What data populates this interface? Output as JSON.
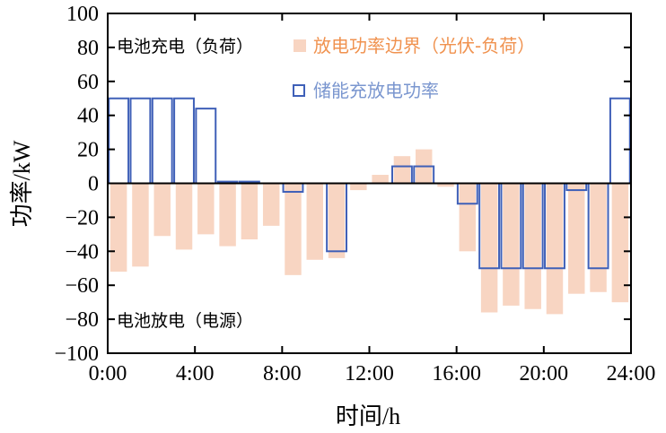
{
  "chart_data": {
    "type": "bar",
    "xlabel": "时间/h",
    "ylabel": "功率/kW",
    "xlim": [
      0,
      24
    ],
    "ylim": [
      -100,
      100
    ],
    "x_ticks": [
      "0:00",
      "4:00",
      "8:00",
      "12:00",
      "16:00",
      "20:00",
      "24:00"
    ],
    "y_ticks": [
      "100",
      "80",
      "60",
      "40",
      "20",
      "0",
      "−20",
      "−40",
      "−60",
      "−80",
      "−100"
    ],
    "hours": [
      0,
      1,
      2,
      3,
      4,
      5,
      6,
      7,
      8,
      9,
      10,
      11,
      12,
      13,
      14,
      15,
      16,
      17,
      18,
      19,
      20,
      21,
      22,
      23
    ],
    "series": [
      {
        "name": "放电功率边界（光伏-负荷）",
        "color": "#f8d5c2",
        "values": [
          -52,
          -49,
          -31,
          -39,
          -30,
          -37,
          -33,
          -25,
          -54,
          -45,
          -44,
          -4,
          5,
          16,
          20,
          -2,
          -40,
          -76,
          -72,
          -74,
          -77,
          -65,
          -64,
          -70
        ]
      },
      {
        "name": "储能充放电功率",
        "color": "#3f60b8",
        "values": [
          50,
          50,
          50,
          50,
          44,
          1,
          1,
          0,
          -5,
          0,
          -40,
          0,
          0,
          10,
          10,
          0,
          -12,
          -50,
          -50,
          -50,
          -50,
          -4,
          -50,
          50
        ]
      }
    ],
    "annotations": [
      "电池充电（负荷）",
      "电池放电（电源）"
    ],
    "legend": "top-right",
    "grid": false
  }
}
